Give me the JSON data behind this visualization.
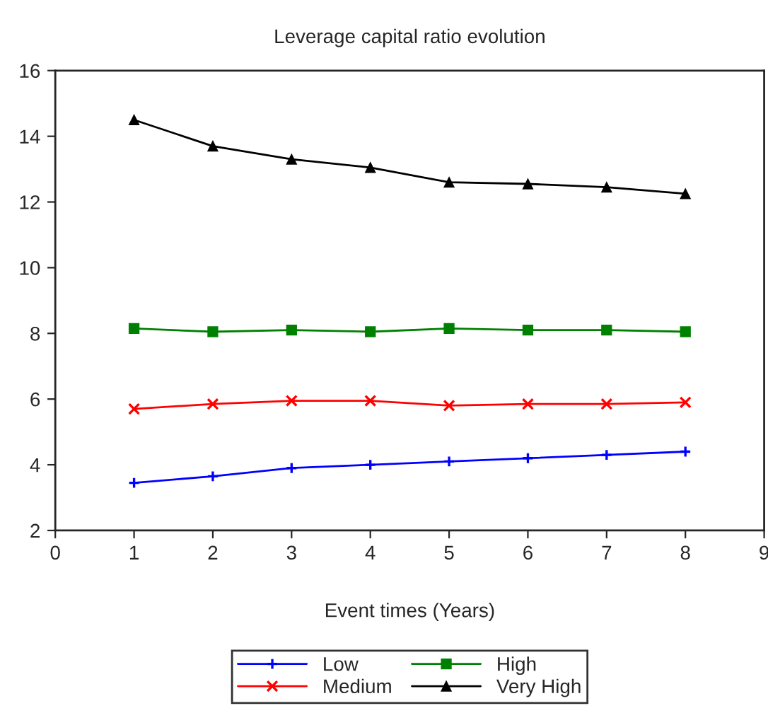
{
  "chart_data": {
    "type": "line",
    "title": "Leverage capital ratio evolution",
    "xlabel": "Event times (Years)",
    "x": [
      1,
      2,
      3,
      4,
      5,
      6,
      7,
      8
    ],
    "series": [
      {
        "name": "Low",
        "color": "#0000ff",
        "marker": "cross",
        "values": [
          3.45,
          3.65,
          3.9,
          4.0,
          4.1,
          4.2,
          4.3,
          4.4
        ]
      },
      {
        "name": "Medium",
        "color": "#ff0000",
        "marker": "x",
        "values": [
          5.7,
          5.85,
          5.95,
          5.95,
          5.8,
          5.85,
          5.85,
          5.9
        ]
      },
      {
        "name": "High",
        "color": "#008000",
        "marker": "square",
        "values": [
          8.15,
          8.05,
          8.1,
          8.05,
          8.15,
          8.1,
          8.1,
          8.05
        ]
      },
      {
        "name": "Very High",
        "color": "#000000",
        "marker": "triangle",
        "values": [
          14.5,
          13.7,
          13.3,
          13.05,
          12.6,
          12.55,
          12.45,
          12.25
        ]
      }
    ],
    "xlim": [
      0,
      9
    ],
    "xticks": [
      0,
      1,
      2,
      3,
      4,
      5,
      6,
      7,
      8,
      9
    ],
    "ylim": [
      2,
      16
    ],
    "yticks": [
      2,
      4,
      6,
      8,
      10,
      12,
      14,
      16
    ],
    "grid": false,
    "legend": "bottom",
    "line_style": "solid"
  }
}
